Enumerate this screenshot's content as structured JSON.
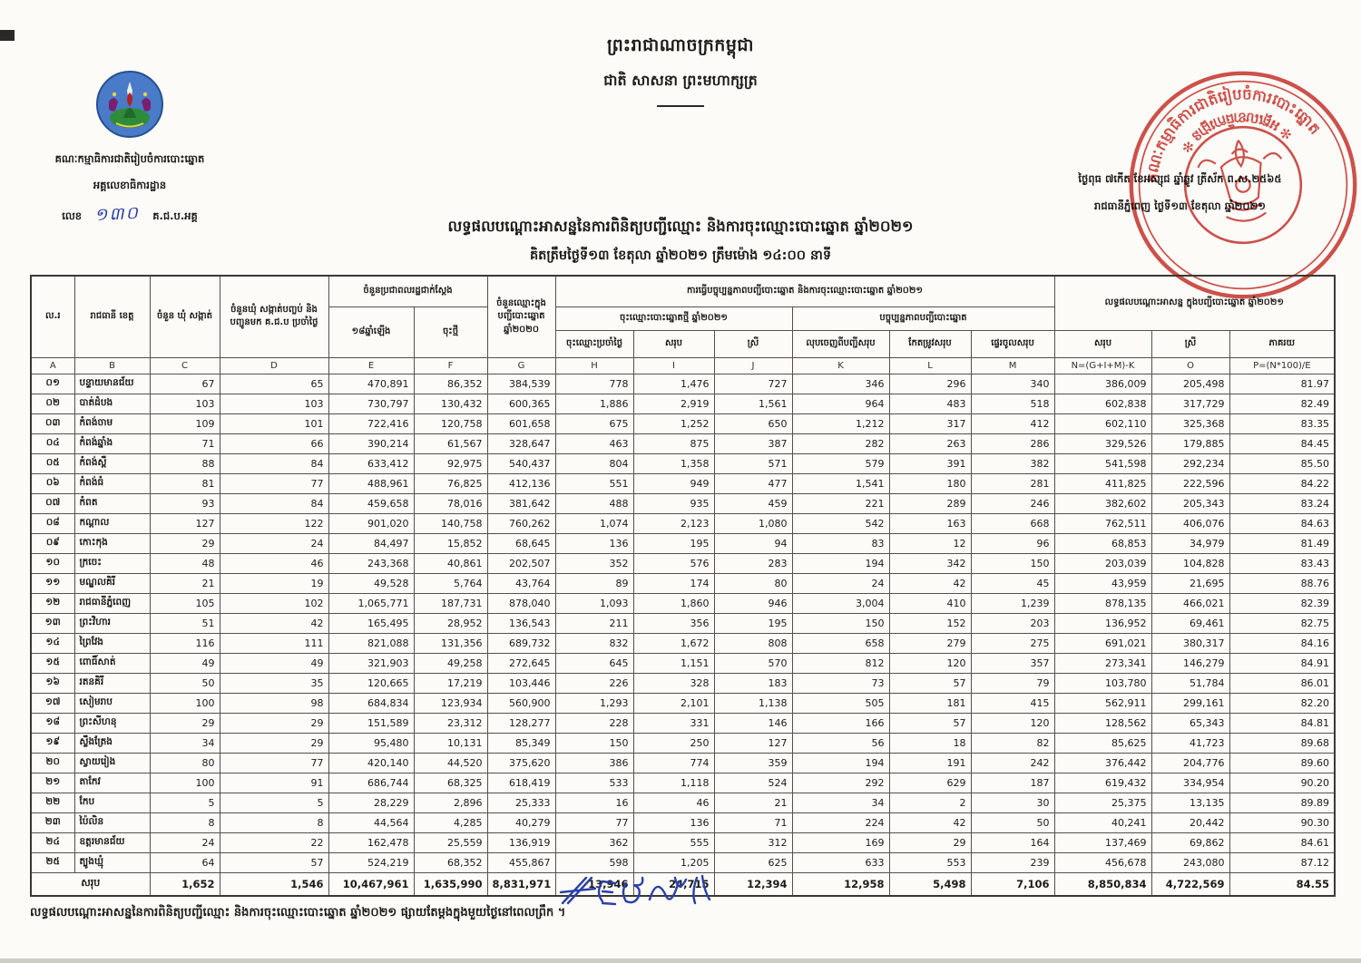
{
  "colors": {
    "stamp_red": "#c93a33",
    "ink_blue": "#2b3fa8",
    "logo_blue": "#4a7bc8"
  },
  "kingdom": {
    "line1": "ព្រះរាជាណាចក្រកម្ពុជា",
    "line2": "ជាតិ សាសនា ព្រះមហាក្សត្រ"
  },
  "letterhead": {
    "committee": "គណៈកម្មាធិការជាតិរៀបចំការបោះឆ្នោត",
    "secretariat": "អគ្គលេខាធិការដ្ឋាន",
    "number_label": "លេខ",
    "number_value": "១៣០",
    "number_suffix": "គ.ជ.ប.អគ្គ"
  },
  "dateline": {
    "line1": "ថ្ងៃពុធ ៧កើត ខែអស្សុជ ឆ្នាំឆ្លូវ ត្រីស័ក ព.ស.២៥៦៥",
    "line2": "រាជធានីភ្នំពេញ ថ្ងៃទី១៣ ខែតុលា ឆ្នាំ២០២១"
  },
  "stamp": {
    "text_top": "គណៈកម្មាធិការជាតិរៀបចំការបោះឆ្នោត",
    "text_bottom": "✻ អគ្គលេខាធិការដ្ឋាន ✻"
  },
  "title": {
    "line1": "លទ្ធផលបណ្តោះអាសន្ននៃការពិនិត្យបញ្ជីឈ្មោះ និងការចុះឈ្មោះបោះឆ្នោត ឆ្នាំ២០២១",
    "line2": "គិតត្រឹមថ្ងៃទី១៣ ខែតុលា ឆ្នាំ២០២១ ត្រឹមម៉ោង ១៤:០០ នាទី"
  },
  "table": {
    "headers": {
      "a": "ល.រ",
      "b": "រាជធានី ខេត្ត",
      "c": "ចំនួន ឃុំ សង្កាត់",
      "d": "ចំនួនឃុំ សង្កាត់បញ្ចប់ និងបញ្ជូនមក គ.ជ.ប ប្រចាំថ្ងៃ",
      "ef_group": "ចំនួនប្រជាពលរដ្ឋជាក់ស្តែង",
      "e": "១៨ឆ្នាំឡើង",
      "f": "ចុះថ្មី",
      "g": "ចំនួនឈ្មោះក្នុងបញ្ជីបោះឆ្នោត ឆ្នាំ២០២០",
      "hm_group": "ការធ្វើបច្ចុប្បន្នភាពបញ្ជីបោះឆ្នោត និងការចុះឈ្មោះបោះឆ្នោត ឆ្នាំ២០២១",
      "hij_group": "ចុះឈ្មោះបោះឆ្នោតថ្មី ឆ្នាំ២០២១",
      "h": "ចុះឈ្មោះប្រចាំថ្ងៃ",
      "i": "សរុប",
      "j": "ស្រី",
      "klm_group": "បច្ចុប្បន្នភាពបញ្ជីបោះឆ្នោត",
      "k": "លុបចេញពីបញ្ជីសរុប",
      "l": "កែតម្រូវសរុប",
      "m": "ផ្ទេរចូលសរុប",
      "nop_group": "លទ្ធផលបណ្តោះអាសន្ន ក្នុងបញ្ជីបោះឆ្នោត ឆ្នាំ២០២១",
      "n": "សរុប",
      "o": "ស្រី",
      "p": "ភាគរយ"
    },
    "letters": [
      "A",
      "B",
      "C",
      "D",
      "E",
      "F",
      "G",
      "H",
      "I",
      "J",
      "K",
      "L",
      "M",
      "N=(G+I+M)-K",
      "O",
      "P=(N*100)/E"
    ],
    "rows": [
      {
        "no": "០១",
        "name": "បន្ទាយមានជ័យ",
        "values": [
          "67",
          "65",
          "470,891",
          "86,352",
          "384,539",
          "778",
          "1,476",
          "727",
          "346",
          "296",
          "340",
          "386,009",
          "205,498",
          "81.97"
        ]
      },
      {
        "no": "០២",
        "name": "បាត់ដំបង",
        "values": [
          "103",
          "103",
          "730,797",
          "130,432",
          "600,365",
          "1,886",
          "2,919",
          "1,561",
          "964",
          "483",
          "518",
          "602,838",
          "317,729",
          "82.49"
        ]
      },
      {
        "no": "០៣",
        "name": "កំពង់ចាម",
        "values": [
          "109",
          "101",
          "722,416",
          "120,758",
          "601,658",
          "675",
          "1,252",
          "650",
          "1,212",
          "317",
          "412",
          "602,110",
          "325,368",
          "83.35"
        ]
      },
      {
        "no": "០៤",
        "name": "កំពង់ឆ្នាំង",
        "values": [
          "71",
          "66",
          "390,214",
          "61,567",
          "328,647",
          "463",
          "875",
          "387",
          "282",
          "263",
          "286",
          "329,526",
          "179,885",
          "84.45"
        ]
      },
      {
        "no": "០៥",
        "name": "កំពង់ស្ពឺ",
        "values": [
          "88",
          "84",
          "633,412",
          "92,975",
          "540,437",
          "804",
          "1,358",
          "571",
          "579",
          "391",
          "382",
          "541,598",
          "292,234",
          "85.50"
        ]
      },
      {
        "no": "០៦",
        "name": "កំពង់ធំ",
        "values": [
          "81",
          "77",
          "488,961",
          "76,825",
          "412,136",
          "551",
          "949",
          "477",
          "1,541",
          "180",
          "281",
          "411,825",
          "222,596",
          "84.22"
        ]
      },
      {
        "no": "០៧",
        "name": "កំពត",
        "values": [
          "93",
          "84",
          "459,658",
          "78,016",
          "381,642",
          "488",
          "935",
          "459",
          "221",
          "289",
          "246",
          "382,602",
          "205,343",
          "83.24"
        ]
      },
      {
        "no": "០៨",
        "name": "កណ្តាល",
        "values": [
          "127",
          "122",
          "901,020",
          "140,758",
          "760,262",
          "1,074",
          "2,123",
          "1,080",
          "542",
          "163",
          "668",
          "762,511",
          "406,076",
          "84.63"
        ]
      },
      {
        "no": "០៩",
        "name": "កោះកុង",
        "values": [
          "29",
          "24",
          "84,497",
          "15,852",
          "68,645",
          "136",
          "195",
          "94",
          "83",
          "12",
          "96",
          "68,853",
          "34,979",
          "81.49"
        ]
      },
      {
        "no": "១០",
        "name": "ក្រចេះ",
        "values": [
          "48",
          "46",
          "243,368",
          "40,861",
          "202,507",
          "352",
          "576",
          "283",
          "194",
          "342",
          "150",
          "203,039",
          "104,828",
          "83.43"
        ]
      },
      {
        "no": "១១",
        "name": "មណ្ឌលគិរី",
        "values": [
          "21",
          "19",
          "49,528",
          "5,764",
          "43,764",
          "89",
          "174",
          "80",
          "24",
          "42",
          "45",
          "43,959",
          "21,695",
          "88.76"
        ]
      },
      {
        "no": "១២",
        "name": "រាជធានីភ្នំពេញ",
        "values": [
          "105",
          "102",
          "1,065,771",
          "187,731",
          "878,040",
          "1,093",
          "1,860",
          "946",
          "3,004",
          "410",
          "1,239",
          "878,135",
          "466,021",
          "82.39"
        ]
      },
      {
        "no": "១៣",
        "name": "ព្រះវិហារ",
        "values": [
          "51",
          "42",
          "165,495",
          "28,952",
          "136,543",
          "211",
          "356",
          "195",
          "150",
          "152",
          "203",
          "136,952",
          "69,461",
          "82.75"
        ]
      },
      {
        "no": "១៤",
        "name": "ព្រៃវែង",
        "values": [
          "116",
          "111",
          "821,088",
          "131,356",
          "689,732",
          "832",
          "1,672",
          "808",
          "658",
          "279",
          "275",
          "691,021",
          "380,317",
          "84.16"
        ]
      },
      {
        "no": "១៥",
        "name": "ពោធិ៍សាត់",
        "values": [
          "49",
          "49",
          "321,903",
          "49,258",
          "272,645",
          "645",
          "1,151",
          "570",
          "812",
          "120",
          "357",
          "273,341",
          "146,279",
          "84.91"
        ]
      },
      {
        "no": "១៦",
        "name": "រតនគិរី",
        "values": [
          "50",
          "35",
          "120,665",
          "17,219",
          "103,446",
          "226",
          "328",
          "183",
          "73",
          "57",
          "79",
          "103,780",
          "51,784",
          "86.01"
        ]
      },
      {
        "no": "១៧",
        "name": "សៀមរាប",
        "values": [
          "100",
          "98",
          "684,834",
          "123,934",
          "560,900",
          "1,293",
          "2,101",
          "1,138",
          "505",
          "181",
          "415",
          "562,911",
          "299,161",
          "82.20"
        ]
      },
      {
        "no": "១៨",
        "name": "ព្រះសីហនុ",
        "values": [
          "29",
          "29",
          "151,589",
          "23,312",
          "128,277",
          "228",
          "331",
          "146",
          "166",
          "57",
          "120",
          "128,562",
          "65,343",
          "84.81"
        ]
      },
      {
        "no": "១៩",
        "name": "ស្ទឹងត្រែង",
        "values": [
          "34",
          "29",
          "95,480",
          "10,131",
          "85,349",
          "150",
          "250",
          "127",
          "56",
          "18",
          "82",
          "85,625",
          "41,723",
          "89.68"
        ]
      },
      {
        "no": "២០",
        "name": "ស្វាយរៀង",
        "values": [
          "80",
          "77",
          "420,140",
          "44,520",
          "375,620",
          "386",
          "774",
          "359",
          "194",
          "191",
          "242",
          "376,442",
          "204,776",
          "89.60"
        ]
      },
      {
        "no": "២១",
        "name": "តាកែវ",
        "values": [
          "100",
          "91",
          "686,744",
          "68,325",
          "618,419",
          "533",
          "1,118",
          "524",
          "292",
          "629",
          "187",
          "619,432",
          "334,954",
          "90.20"
        ]
      },
      {
        "no": "២២",
        "name": "កែប",
        "values": [
          "5",
          "5",
          "28,229",
          "2,896",
          "25,333",
          "16",
          "46",
          "21",
          "34",
          "2",
          "30",
          "25,375",
          "13,135",
          "89.89"
        ]
      },
      {
        "no": "២៣",
        "name": "ប៉ៃលិន",
        "values": [
          "8",
          "8",
          "44,564",
          "4,285",
          "40,279",
          "77",
          "136",
          "71",
          "224",
          "42",
          "50",
          "40,241",
          "20,442",
          "90.30"
        ]
      },
      {
        "no": "២៤",
        "name": "ឧត្តរមានជ័យ",
        "values": [
          "24",
          "22",
          "162,478",
          "25,559",
          "136,919",
          "362",
          "555",
          "312",
          "169",
          "29",
          "164",
          "137,469",
          "69,862",
          "84.61"
        ]
      },
      {
        "no": "២៥",
        "name": "ត្បូងឃ្មុំ",
        "values": [
          "64",
          "57",
          "524,219",
          "68,352",
          "455,867",
          "598",
          "1,205",
          "625",
          "633",
          "553",
          "239",
          "456,678",
          "243,080",
          "87.12"
        ]
      }
    ],
    "total": {
      "label": "សរុប",
      "values": [
        "1,652",
        "1,546",
        "10,467,961",
        "1,635,990",
        "8,831,971",
        "13,946",
        "24,715",
        "12,394",
        "12,958",
        "5,498",
        "7,106",
        "8,850,834",
        "4,722,569",
        "84.55"
      ]
    }
  },
  "footer": {
    "note": "លទ្ធផលបណ្តោះអាសន្ននៃការពិនិត្យបញ្ជីឈ្មោះ និងការចុះឈ្មោះបោះឆ្នោត ឆ្នាំ២០២១ ផ្សាយតែម្តងក្នុងមួយថ្ងៃនៅពេលព្រឹក ។"
  }
}
